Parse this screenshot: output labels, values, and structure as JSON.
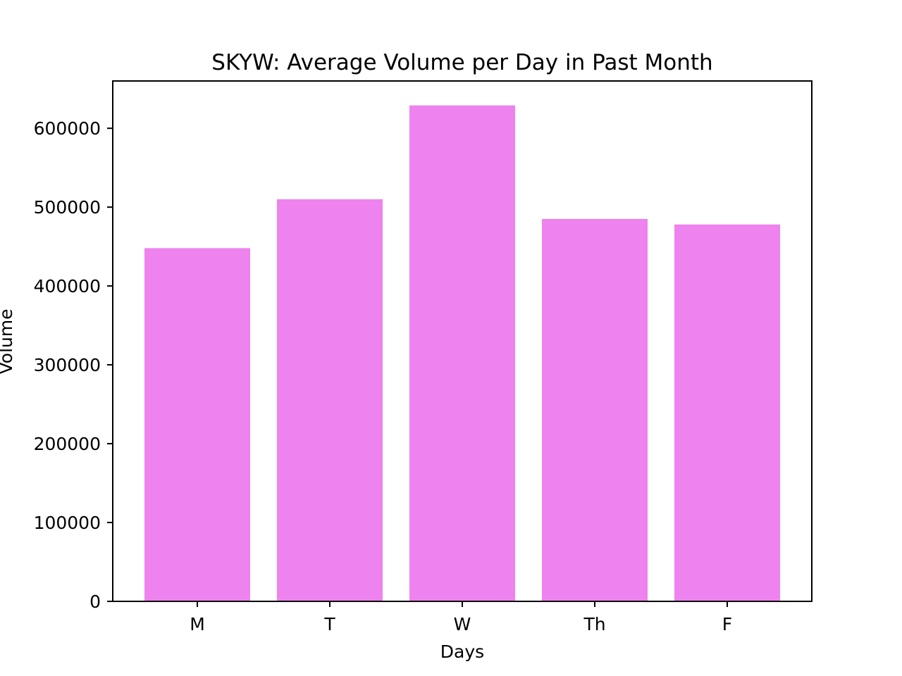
{
  "chart_data": {
    "type": "bar",
    "title": "SKYW: Average Volume per Day in Past Month",
    "xlabel": "Days",
    "ylabel": "Volume",
    "categories": [
      "M",
      "T",
      "W",
      "Th",
      "F"
    ],
    "values": [
      448000,
      510000,
      629000,
      485000,
      478000
    ],
    "ylim": [
      0,
      660000
    ],
    "yticks": [
      0,
      100000,
      200000,
      300000,
      400000,
      500000,
      600000
    ],
    "ytick_labels": [
      "0",
      "100000",
      "200000",
      "300000",
      "400000",
      "500000",
      "600000"
    ],
    "bar_color": "#ee82ee",
    "grid": false,
    "legend": "none"
  }
}
